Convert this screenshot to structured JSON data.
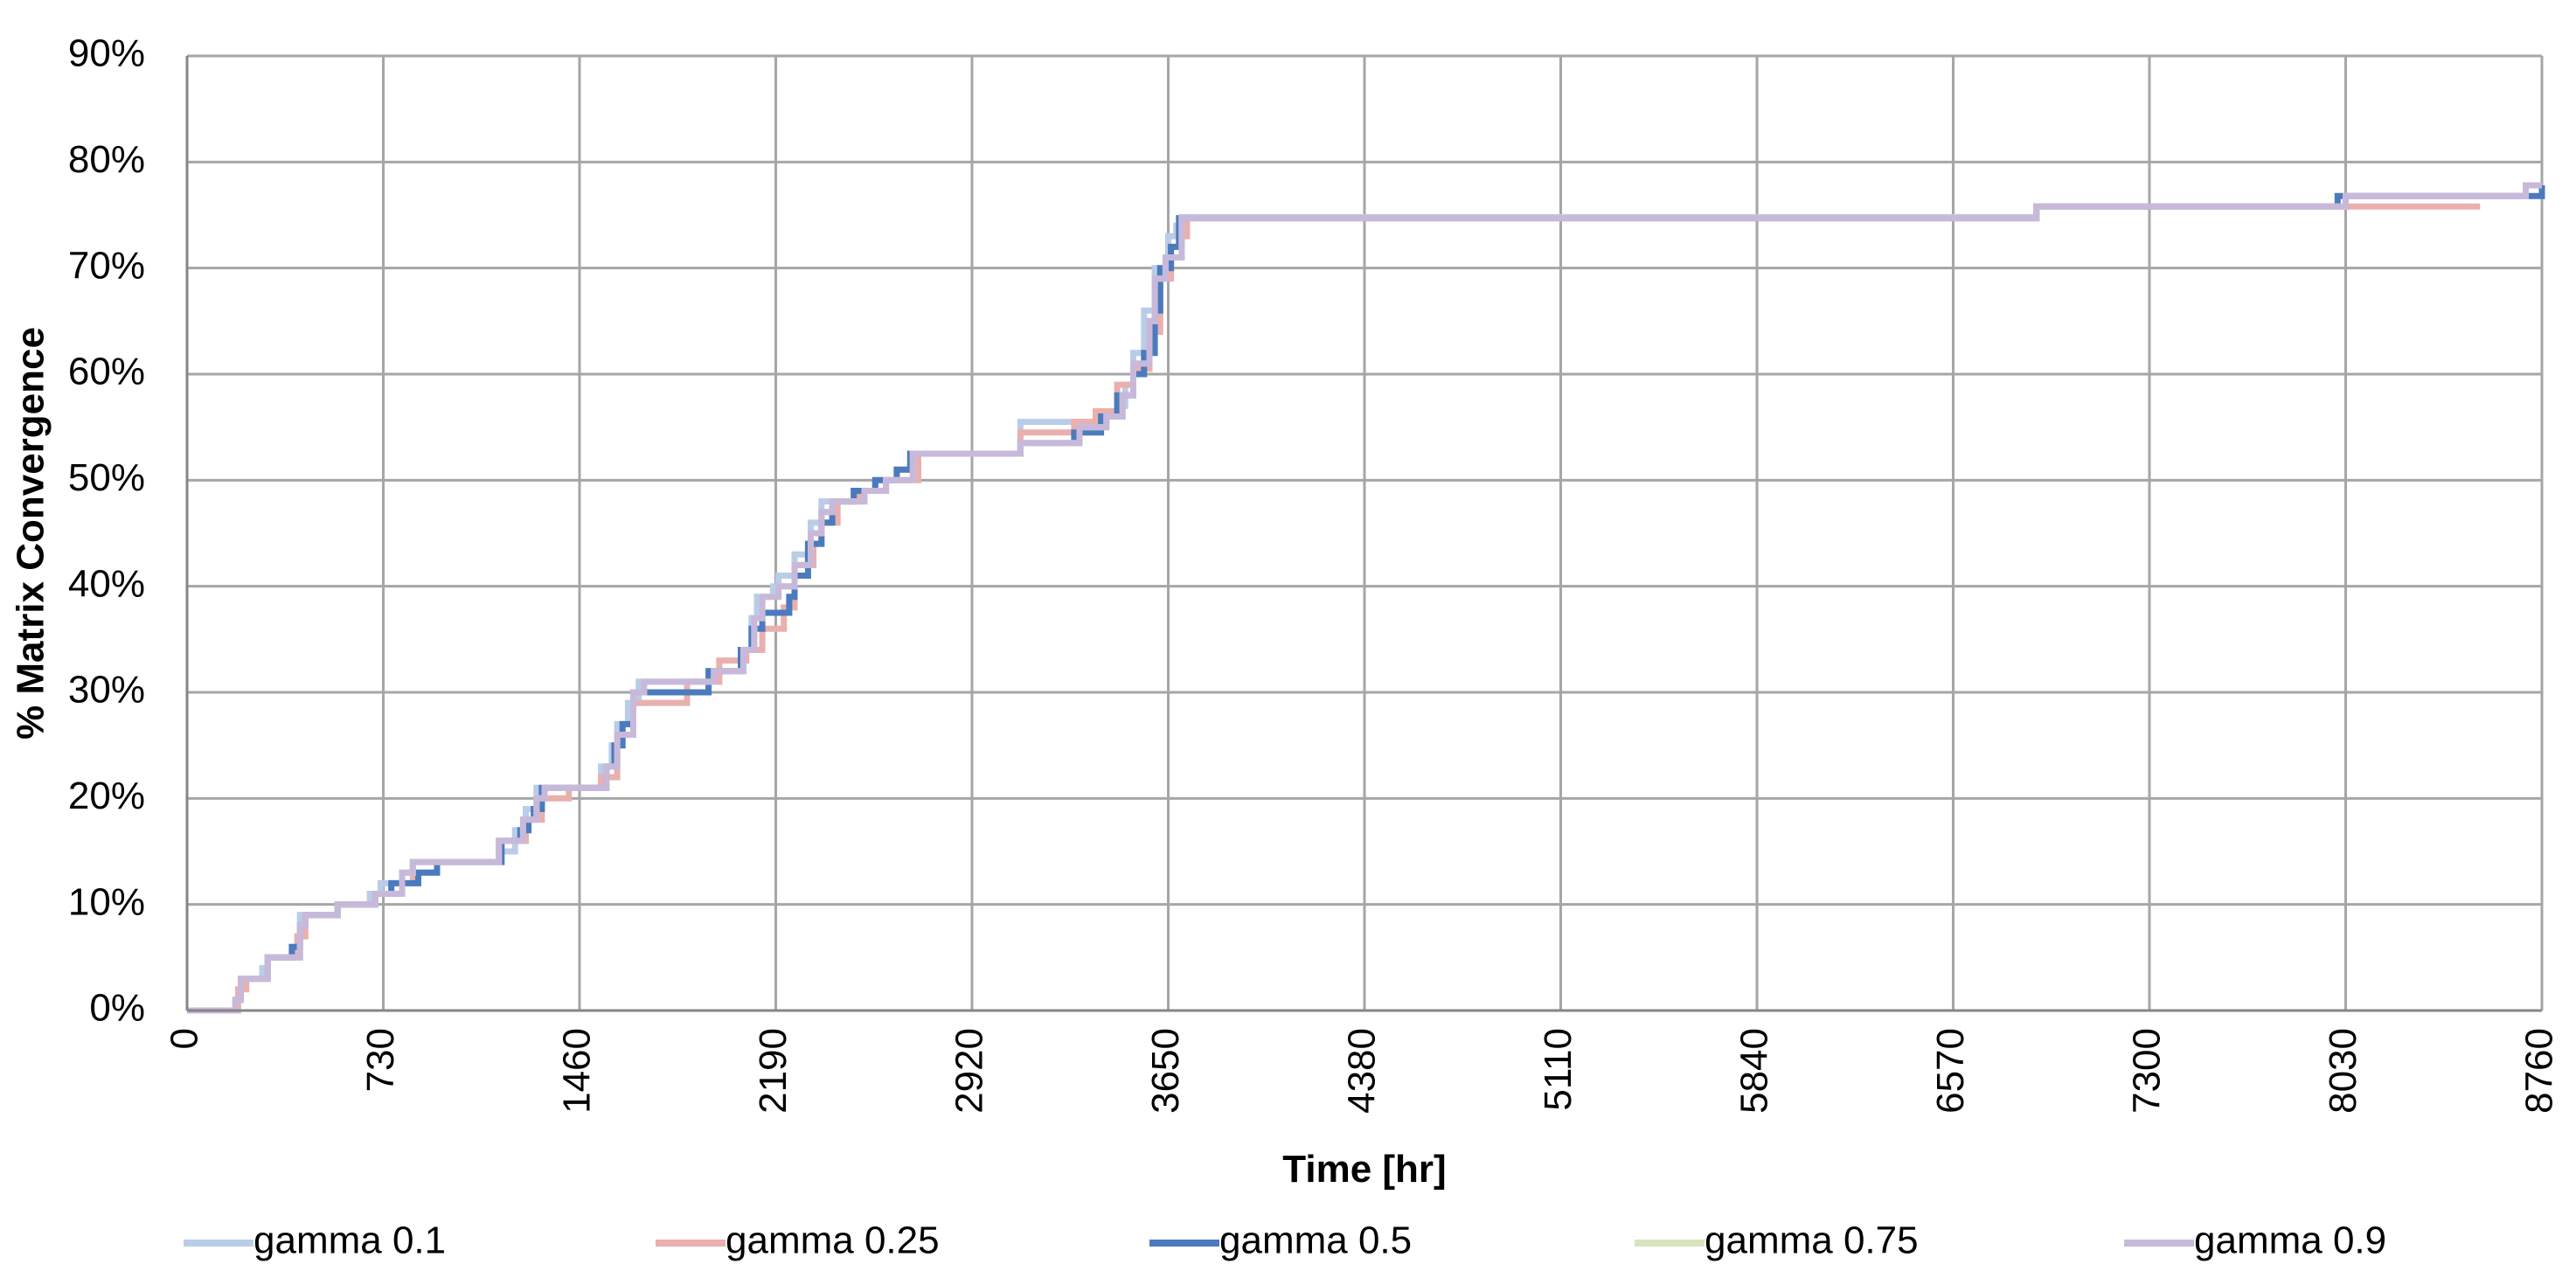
{
  "chart_data": {
    "type": "line",
    "title": "",
    "xlabel": "Time [hr]",
    "ylabel": "% Matrix Convergence",
    "xlim": [
      0,
      8760
    ],
    "ylim": [
      0,
      90
    ],
    "x_ticks": [
      0,
      730,
      1460,
      2190,
      2920,
      3650,
      4380,
      5110,
      5840,
      6570,
      7300,
      8030,
      8760
    ],
    "x_tick_labels": [
      "0",
      "730",
      "1460",
      "2190",
      "2920",
      "3650",
      "4380",
      "5110",
      "5840",
      "6570",
      "7300",
      "8030",
      "8760"
    ],
    "y_ticks": [
      0,
      10,
      20,
      30,
      40,
      50,
      60,
      70,
      80,
      90
    ],
    "y_tick_labels": [
      "0%",
      "10%",
      "20%",
      "30%",
      "40%",
      "50%",
      "60%",
      "70%",
      "80%",
      "90%"
    ],
    "grid": true,
    "legend_position": "bottom",
    "line_style": "step",
    "series": [
      {
        "name": "gamma 0.1",
        "color": "#b9cde8",
        "points": [
          [
            0,
            0
          ],
          [
            160,
            0
          ],
          [
            180,
            1
          ],
          [
            200,
            3
          ],
          [
            280,
            4
          ],
          [
            300,
            5
          ],
          [
            400,
            6
          ],
          [
            420,
            9
          ],
          [
            560,
            10
          ],
          [
            680,
            11
          ],
          [
            720,
            12
          ],
          [
            850,
            13
          ],
          [
            930,
            14
          ],
          [
            1160,
            15
          ],
          [
            1220,
            17
          ],
          [
            1260,
            19
          ],
          [
            1300,
            21
          ],
          [
            1540,
            23
          ],
          [
            1580,
            25
          ],
          [
            1600,
            27
          ],
          [
            1640,
            29
          ],
          [
            1680,
            31
          ],
          [
            1950,
            32
          ],
          [
            2060,
            34
          ],
          [
            2100,
            37
          ],
          [
            2120,
            39
          ],
          [
            2180,
            40
          ],
          [
            2200,
            41
          ],
          [
            2260,
            43
          ],
          [
            2320,
            46
          ],
          [
            2360,
            48
          ],
          [
            2480,
            49
          ],
          [
            2560,
            50
          ],
          [
            2640,
            51
          ],
          [
            2690,
            52
          ],
          [
            2700,
            52.5
          ],
          [
            3100,
            55.5
          ],
          [
            3360,
            55.5
          ],
          [
            3420,
            56
          ],
          [
            3460,
            57
          ],
          [
            3490,
            59
          ],
          [
            3520,
            62
          ],
          [
            3560,
            66
          ],
          [
            3600,
            70
          ],
          [
            3650,
            73
          ],
          [
            3680,
            74
          ],
          [
            3700,
            74.8
          ],
          [
            6880,
            75.8
          ],
          [
            8030,
            76.8
          ],
          [
            8700,
            77.8
          ],
          [
            8760,
            77.8
          ]
        ]
      },
      {
        "name": "gamma 0.25",
        "color": "#e9b0ae",
        "points": [
          [
            0,
            0
          ],
          [
            170,
            0
          ],
          [
            190,
            2
          ],
          [
            220,
            3
          ],
          [
            300,
            5
          ],
          [
            410,
            7
          ],
          [
            440,
            9
          ],
          [
            560,
            10
          ],
          [
            700,
            11
          ],
          [
            800,
            12
          ],
          [
            840,
            14
          ],
          [
            1160,
            16
          ],
          [
            1260,
            18
          ],
          [
            1320,
            20
          ],
          [
            1420,
            21
          ],
          [
            1540,
            22
          ],
          [
            1600,
            26
          ],
          [
            1660,
            29
          ],
          [
            1860,
            31
          ],
          [
            1980,
            33
          ],
          [
            2080,
            34
          ],
          [
            2140,
            36
          ],
          [
            2220,
            38
          ],
          [
            2260,
            42
          ],
          [
            2330,
            44
          ],
          [
            2360,
            46
          ],
          [
            2420,
            48
          ],
          [
            2500,
            49
          ],
          [
            2600,
            50
          ],
          [
            2720,
            52.5
          ],
          [
            3100,
            54.5
          ],
          [
            3300,
            55.5
          ],
          [
            3380,
            56.5
          ],
          [
            3460,
            59
          ],
          [
            3520,
            60.5
          ],
          [
            3580,
            64
          ],
          [
            3620,
            69
          ],
          [
            3660,
            72
          ],
          [
            3700,
            73
          ],
          [
            3720,
            74.7
          ],
          [
            6880,
            75.8
          ],
          [
            8030,
            75.8
          ],
          [
            8530,
            75.8
          ]
        ]
      },
      {
        "name": "gamma 0.5",
        "color": "#4b7bbd",
        "points": [
          [
            0,
            0
          ],
          [
            160,
            0
          ],
          [
            180,
            1
          ],
          [
            200,
            3
          ],
          [
            300,
            5
          ],
          [
            390,
            6
          ],
          [
            420,
            8
          ],
          [
            440,
            9
          ],
          [
            560,
            10
          ],
          [
            700,
            11
          ],
          [
            760,
            12
          ],
          [
            860,
            13
          ],
          [
            930,
            14
          ],
          [
            1170,
            16
          ],
          [
            1240,
            17
          ],
          [
            1270,
            18
          ],
          [
            1290,
            19
          ],
          [
            1320,
            21
          ],
          [
            1560,
            23
          ],
          [
            1590,
            25
          ],
          [
            1620,
            27
          ],
          [
            1660,
            30
          ],
          [
            1940,
            32
          ],
          [
            2060,
            34
          ],
          [
            2100,
            36
          ],
          [
            2140,
            37.5
          ],
          [
            2240,
            39
          ],
          [
            2260,
            41
          ],
          [
            2310,
            44
          ],
          [
            2360,
            46
          ],
          [
            2400,
            48
          ],
          [
            2480,
            49
          ],
          [
            2560,
            50
          ],
          [
            2640,
            51
          ],
          [
            2690,
            52.5
          ],
          [
            3100,
            53.5
          ],
          [
            3300,
            54.5
          ],
          [
            3400,
            56
          ],
          [
            3460,
            58
          ],
          [
            3520,
            60
          ],
          [
            3560,
            62
          ],
          [
            3600,
            66
          ],
          [
            3620,
            70
          ],
          [
            3660,
            72
          ],
          [
            3690,
            74.7
          ],
          [
            6880,
            75.8
          ],
          [
            8000,
            76.8
          ],
          [
            8760,
            77.8
          ]
        ]
      },
      {
        "name": "gamma 0.75",
        "color": "#d7e4bd",
        "points": [
          [
            0,
            0
          ],
          [
            160,
            0
          ],
          [
            180,
            1
          ],
          [
            200,
            3
          ],
          [
            300,
            5
          ],
          [
            420,
            8
          ],
          [
            440,
            9
          ],
          [
            560,
            10
          ],
          [
            700,
            11
          ],
          [
            800,
            13
          ],
          [
            840,
            14
          ],
          [
            1160,
            16
          ],
          [
            1250,
            18
          ],
          [
            1300,
            20
          ],
          [
            1330,
            21
          ],
          [
            1560,
            23
          ],
          [
            1600,
            26
          ],
          [
            1660,
            30
          ],
          [
            1700,
            31
          ],
          [
            1960,
            32
          ],
          [
            2070,
            34
          ],
          [
            2110,
            37
          ],
          [
            2140,
            39
          ],
          [
            2200,
            40
          ],
          [
            2260,
            42
          ],
          [
            2320,
            45
          ],
          [
            2360,
            47
          ],
          [
            2400,
            48
          ],
          [
            2520,
            49
          ],
          [
            2600,
            50
          ],
          [
            2700,
            52.5
          ],
          [
            3100,
            53.5
          ],
          [
            3320,
            55
          ],
          [
            3420,
            56
          ],
          [
            3480,
            58
          ],
          [
            3520,
            61
          ],
          [
            3580,
            65
          ],
          [
            3600,
            69
          ],
          [
            3640,
            71
          ],
          [
            3700,
            74.7
          ],
          [
            6880,
            75.8
          ],
          [
            8030,
            76.8
          ],
          [
            8700,
            77.8
          ],
          [
            8760,
            77.8
          ]
        ]
      },
      {
        "name": "gamma 0.9",
        "color": "#c8b9db",
        "points": [
          [
            0,
            0
          ],
          [
            160,
            0
          ],
          [
            180,
            1
          ],
          [
            200,
            3
          ],
          [
            300,
            5
          ],
          [
            420,
            8
          ],
          [
            440,
            9
          ],
          [
            560,
            10
          ],
          [
            700,
            11
          ],
          [
            800,
            13
          ],
          [
            840,
            14
          ],
          [
            1160,
            16
          ],
          [
            1250,
            18
          ],
          [
            1300,
            20
          ],
          [
            1330,
            21
          ],
          [
            1560,
            23
          ],
          [
            1600,
            26
          ],
          [
            1660,
            30
          ],
          [
            1700,
            31
          ],
          [
            1960,
            32
          ],
          [
            2070,
            34
          ],
          [
            2110,
            37
          ],
          [
            2140,
            39
          ],
          [
            2200,
            40
          ],
          [
            2260,
            42
          ],
          [
            2320,
            45
          ],
          [
            2360,
            47
          ],
          [
            2400,
            48
          ],
          [
            2520,
            49
          ],
          [
            2600,
            50
          ],
          [
            2700,
            52.5
          ],
          [
            3100,
            53.5
          ],
          [
            3320,
            55
          ],
          [
            3420,
            56
          ],
          [
            3480,
            58
          ],
          [
            3520,
            61
          ],
          [
            3580,
            65
          ],
          [
            3600,
            69
          ],
          [
            3640,
            71
          ],
          [
            3700,
            74.7
          ],
          [
            6880,
            75.8
          ],
          [
            8030,
            76.8
          ],
          [
            8700,
            77.8
          ],
          [
            8760,
            77.8
          ]
        ]
      }
    ]
  }
}
